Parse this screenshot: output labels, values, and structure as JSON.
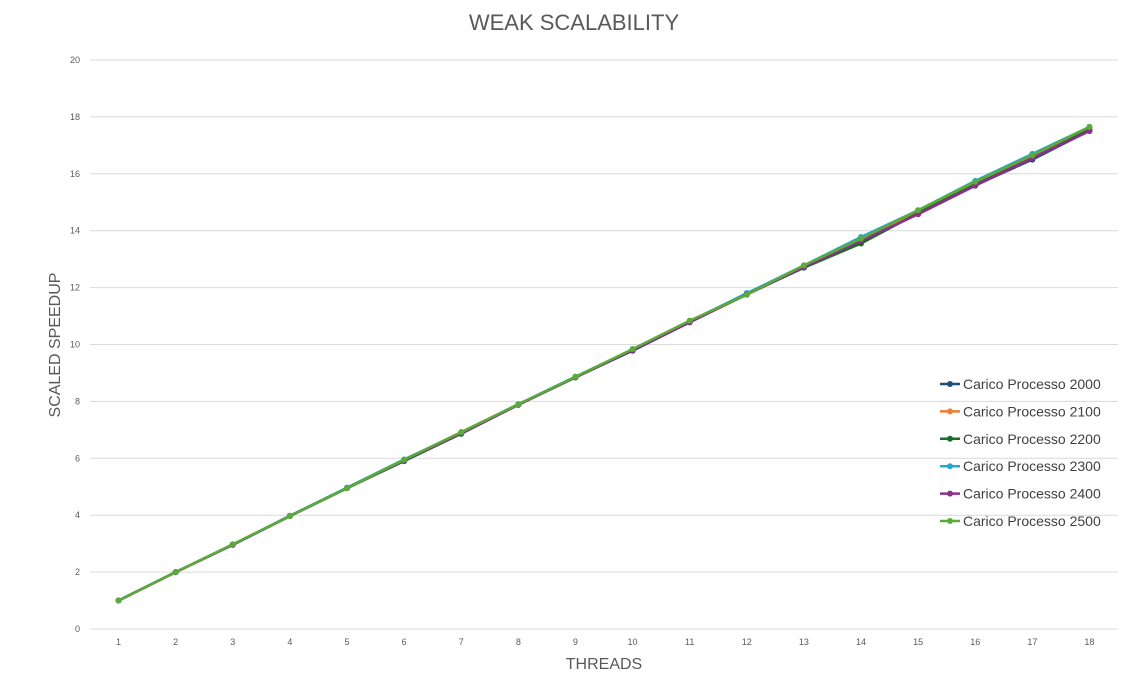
{
  "chart_data": {
    "type": "line",
    "title": "WEAK SCALABILITY",
    "xlabel": "THREADS",
    "ylabel": "SCALED SPEEDUP",
    "ylim": [
      0,
      20
    ],
    "yticks": [
      0,
      2,
      4,
      6,
      8,
      10,
      12,
      14,
      16,
      18,
      20
    ],
    "x": [
      1,
      2,
      3,
      4,
      5,
      6,
      7,
      8,
      9,
      10,
      11,
      12,
      13,
      14,
      15,
      16,
      17,
      18
    ],
    "grid": true,
    "legend_position": "right",
    "series": [
      {
        "name": "Carico Processo 2000",
        "color": "#1f4e79",
        "values": [
          1,
          2,
          2.96,
          3.97,
          4.95,
          5.92,
          6.88,
          7.88,
          8.85,
          9.78,
          10.78,
          11.8,
          12.7,
          13.65,
          14.6,
          15.6,
          16.5,
          17.52
        ]
      },
      {
        "name": "Carico Processo 2100",
        "color": "#ed7d31",
        "values": [
          1,
          2,
          2.97,
          3.98,
          4.96,
          5.94,
          6.92,
          7.9,
          8.86,
          9.82,
          10.8,
          11.75,
          12.72,
          13.7,
          14.65,
          15.65,
          16.6,
          17.6
        ]
      },
      {
        "name": "Carico Processo 2200",
        "color": "#1e6b2e",
        "values": [
          1,
          2,
          2.96,
          3.97,
          4.95,
          5.9,
          6.86,
          7.88,
          8.84,
          9.8,
          10.78,
          11.76,
          12.7,
          13.55,
          14.62,
          15.62,
          16.55,
          17.55
        ]
      },
      {
        "name": "Carico Processo 2300",
        "color": "#27a6cf",
        "values": [
          1,
          2,
          2.97,
          3.98,
          4.97,
          5.96,
          6.9,
          7.9,
          8.87,
          9.82,
          10.82,
          11.8,
          12.78,
          13.78,
          14.72,
          15.75,
          16.7,
          17.65
        ]
      },
      {
        "name": "Carico Processo 2400",
        "color": "#8b2f8c",
        "values": [
          1,
          2,
          2.96,
          3.97,
          4.95,
          5.93,
          6.88,
          7.88,
          8.85,
          9.8,
          10.78,
          11.76,
          12.72,
          13.65,
          14.58,
          15.58,
          16.55,
          17.5
        ]
      },
      {
        "name": "Carico Processo 2500",
        "color": "#5aab3a",
        "values": [
          1,
          2,
          2.98,
          3.97,
          4.95,
          5.95,
          6.92,
          7.9,
          8.86,
          9.84,
          10.84,
          11.75,
          12.78,
          13.72,
          14.72,
          15.72,
          16.65,
          17.65
        ]
      }
    ]
  }
}
